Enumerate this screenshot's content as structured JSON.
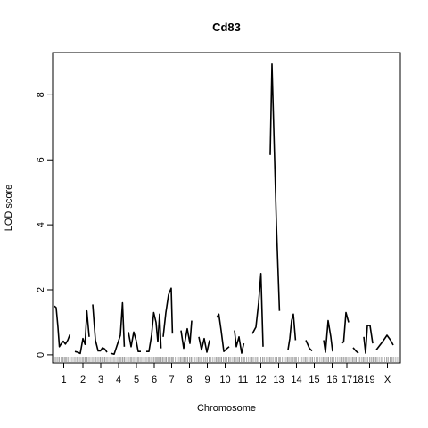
{
  "chart_data": {
    "type": "line",
    "title": "Cd83",
    "xlabel": "Chromosome",
    "ylabel": "LOD score",
    "ylim": [
      -0.25,
      9.3
    ],
    "yticks": [
      0,
      2,
      4,
      6,
      8
    ],
    "grid": false,
    "legend": "none",
    "line_color": "#000000",
    "chromosomes": [
      {
        "label": "1",
        "range": [
          0.0,
          1.05
        ],
        "points": [
          [
            0.0,
            1.5
          ],
          [
            0.1,
            1.45
          ],
          [
            0.2,
            0.85
          ],
          [
            0.28,
            0.25
          ],
          [
            0.4,
            0.35
          ],
          [
            0.5,
            0.42
          ],
          [
            0.62,
            0.33
          ],
          [
            0.75,
            0.45
          ],
          [
            0.87,
            0.62
          ]
        ]
      },
      {
        "label": "2",
        "range": [
          1.15,
          2.05
        ],
        "points": [
          [
            1.15,
            0.1
          ],
          [
            1.3,
            0.08
          ],
          [
            1.45,
            0.04
          ],
          [
            1.6,
            0.5
          ],
          [
            1.72,
            0.32
          ],
          [
            1.82,
            1.35
          ],
          [
            1.95,
            0.55
          ]
        ]
      },
      {
        "label": "3",
        "range": [
          2.15,
          3.05
        ],
        "points": [
          [
            2.15,
            1.55
          ],
          [
            2.3,
            0.45
          ],
          [
            2.45,
            0.12
          ],
          [
            2.58,
            0.12
          ],
          [
            2.7,
            0.22
          ],
          [
            2.82,
            0.18
          ],
          [
            2.95,
            0.08
          ]
        ]
      },
      {
        "label": "4",
        "range": [
          3.15,
          4.05
        ],
        "points": [
          [
            3.15,
            0.05
          ],
          [
            3.35,
            0.02
          ],
          [
            3.55,
            0.35
          ],
          [
            3.7,
            0.6
          ],
          [
            3.82,
            1.6
          ],
          [
            3.92,
            0.25
          ]
        ]
      },
      {
        "label": "5",
        "range": [
          4.15,
          5.05
        ],
        "points": [
          [
            4.15,
            0.7
          ],
          [
            4.3,
            0.25
          ],
          [
            4.45,
            0.7
          ],
          [
            4.58,
            0.45
          ],
          [
            4.7,
            0.1
          ],
          [
            4.85,
            0.1
          ]
        ]
      },
      {
        "label": "6",
        "range": [
          5.15,
          6.05
        ],
        "points": [
          [
            5.15,
            0.1
          ],
          [
            5.3,
            0.1
          ],
          [
            5.45,
            0.6
          ],
          [
            5.57,
            1.3
          ],
          [
            5.7,
            1.0
          ],
          [
            5.8,
            0.4
          ],
          [
            5.9,
            1.25
          ],
          [
            5.98,
            0.2
          ]
        ]
      },
      {
        "label": "7",
        "range": [
          6.1,
          7.05
        ],
        "points": [
          [
            6.1,
            0.55
          ],
          [
            6.25,
            1.3
          ],
          [
            6.4,
            1.85
          ],
          [
            6.55,
            2.05
          ],
          [
            6.62,
            0.65
          ]
        ]
      },
      {
        "label": "8",
        "range": [
          7.1,
          8.05
        ],
        "points": [
          [
            7.1,
            0.75
          ],
          [
            7.25,
            0.2
          ],
          [
            7.45,
            0.8
          ],
          [
            7.6,
            0.35
          ],
          [
            7.7,
            1.05
          ]
        ]
      },
      {
        "label": "9",
        "range": [
          8.1,
          9.05
        ],
        "points": [
          [
            8.1,
            0.55
          ],
          [
            8.25,
            0.15
          ],
          [
            8.4,
            0.5
          ],
          [
            8.55,
            0.08
          ],
          [
            8.7,
            0.45
          ]
        ]
      },
      {
        "label": "10",
        "range": [
          9.1,
          10.05
        ],
        "points": [
          [
            9.1,
            1.15
          ],
          [
            9.22,
            1.25
          ],
          [
            9.35,
            0.75
          ],
          [
            9.5,
            0.1
          ],
          [
            9.65,
            0.18
          ],
          [
            9.8,
            0.25
          ]
        ]
      },
      {
        "label": "11",
        "range": [
          10.1,
          11.05
        ],
        "points": [
          [
            10.1,
            0.75
          ],
          [
            10.2,
            0.25
          ],
          [
            10.35,
            0.55
          ],
          [
            10.5,
            0.05
          ],
          [
            10.62,
            0.35
          ]
        ]
      },
      {
        "label": "12",
        "range": [
          11.1,
          12.05
        ],
        "points": [
          [
            11.1,
            0.65
          ],
          [
            11.3,
            0.85
          ],
          [
            11.45,
            1.6
          ],
          [
            11.58,
            2.5
          ],
          [
            11.7,
            0.25
          ]
        ]
      },
      {
        "label": "13",
        "range": [
          12.1,
          13.05
        ],
        "points": [
          [
            12.1,
            6.15
          ],
          [
            12.2,
            8.95
          ],
          [
            12.45,
            4.0
          ],
          [
            12.62,
            1.35
          ]
        ]
      },
      {
        "label": "14",
        "range": [
          13.1,
          14.05
        ],
        "points": [
          [
            13.1,
            0.15
          ],
          [
            13.2,
            0.5
          ],
          [
            13.3,
            1.05
          ],
          [
            13.4,
            1.25
          ],
          [
            13.52,
            0.45
          ]
        ]
      },
      {
        "label": "15",
        "range": [
          14.1,
          15.05
        ],
        "points": [
          [
            14.1,
            0.45
          ],
          [
            14.3,
            0.2
          ],
          [
            14.45,
            0.12
          ]
        ]
      },
      {
        "label": "16",
        "range": [
          15.1,
          16.05
        ],
        "points": [
          [
            15.1,
            0.45
          ],
          [
            15.2,
            0.08
          ],
          [
            15.35,
            1.05
          ],
          [
            15.5,
            0.55
          ],
          [
            15.6,
            0.1
          ]
        ]
      },
      {
        "label": "17",
        "range": [
          16.1,
          16.7
        ],
        "points": [
          [
            16.1,
            0.35
          ],
          [
            16.22,
            0.4
          ],
          [
            16.35,
            1.3
          ],
          [
            16.5,
            1.0
          ]
        ]
      },
      {
        "label": "18",
        "range": [
          16.75,
          17.3
        ],
        "points": [
          [
            16.75,
            0.22
          ],
          [
            16.9,
            0.12
          ],
          [
            17.05,
            0.05
          ]
        ]
      },
      {
        "label": "19",
        "range": [
          17.35,
          18.0
        ],
        "points": [
          [
            17.35,
            0.55
          ],
          [
            17.45,
            0.05
          ],
          [
            17.55,
            0.9
          ],
          [
            17.7,
            0.9
          ],
          [
            17.85,
            0.35
          ]
        ]
      },
      {
        "label": "X",
        "range": [
          18.05,
          19.3
        ],
        "points": [
          [
            18.05,
            0.15
          ],
          [
            18.4,
            0.4
          ],
          [
            18.65,
            0.6
          ],
          [
            18.85,
            0.45
          ],
          [
            19.0,
            0.3
          ]
        ]
      }
    ]
  }
}
